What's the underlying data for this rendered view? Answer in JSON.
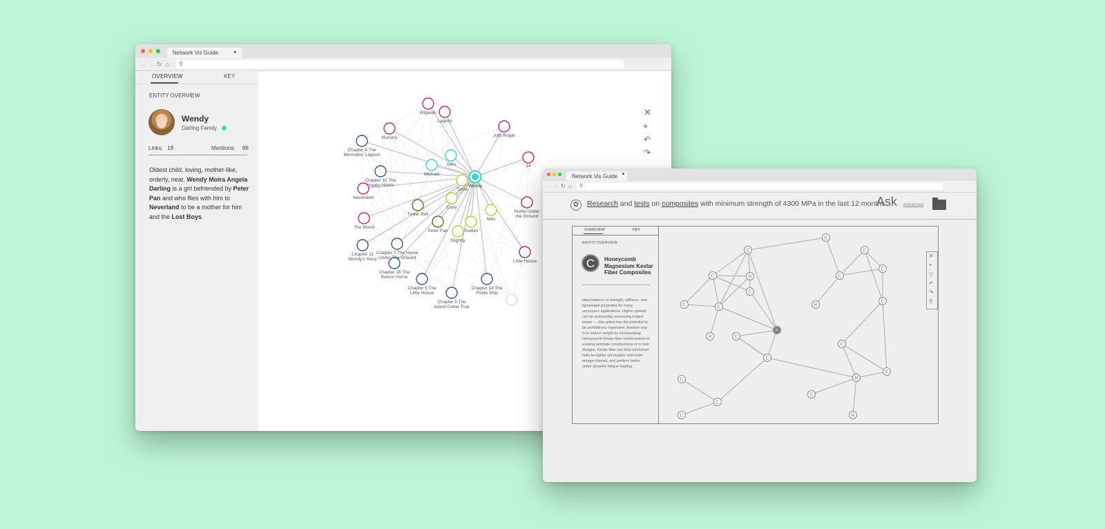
{
  "window1": {
    "tab_title": "Network Vis Guide",
    "tabs": [
      "OVERVIEW",
      "KEY"
    ],
    "section_label": "ENTITY OVERVIEW",
    "entity": {
      "name": "Wendy",
      "group": "Darling Family",
      "group_color": "#3fd2c7",
      "links_label": "Links:",
      "links_value": "18",
      "mentions_label": "Mentions:",
      "mentions_value": "86"
    },
    "description": [
      {
        "t": "Oldest child, loving, mother-like, orderly, neat. ",
        "b": false
      },
      {
        "t": "Wendy Moira Angela Darling",
        "b": true
      },
      {
        "t": " is a girl befriended by ",
        "b": false
      },
      {
        "t": "Peter Pan",
        "b": true
      },
      {
        "t": " and who flies with him to ",
        "b": false
      },
      {
        "t": "Neverland",
        "b": true
      },
      {
        "t": " to be a mother for him and the ",
        "b": false
      },
      {
        "t": "Lost Boys",
        "b": true
      },
      {
        "t": ".",
        "b": false
      }
    ],
    "graph": {
      "center": {
        "label": "Wendy",
        "color": "#3fd2c7"
      },
      "nodes": [
        {
          "label": "Wigwam",
          "color": "#c0257a"
        },
        {
          "label": "Lagoon",
          "color": "#c0257a"
        },
        {
          "label": "Nursery",
          "color": "#c0257a"
        },
        {
          "label": "Jolly Roger",
          "color": "#c0257a"
        },
        {
          "label": "14",
          "color": "#c0257a"
        },
        {
          "label": "Chapter 8 The Mermaids' Lagoon",
          "color": "#2a5a8c"
        },
        {
          "label": "John",
          "color": "#3fd2c7"
        },
        {
          "label": "Michael",
          "color": "#3fd2c7"
        },
        {
          "label": "Chapter 10 The Happy Home",
          "color": "#2a5a8c"
        },
        {
          "label": "Twins",
          "color": "#b5cc3a"
        },
        {
          "label": "Neverland",
          "color": "#c0257a"
        },
        {
          "label": "Curly",
          "color": "#b5cc3a"
        },
        {
          "label": "Tinker Bell",
          "color": "#4a7a1a"
        },
        {
          "label": "Nibs",
          "color": "#b5cc3a"
        },
        {
          "label": "Home Under the Ground",
          "color": "#c0257a"
        },
        {
          "label": "The Wood",
          "color": "#c0257a"
        },
        {
          "label": "Peter Pan",
          "color": "#4a7a1a"
        },
        {
          "label": "Tootles",
          "color": "#b5cc3a"
        },
        {
          "label": "Slightly",
          "color": "#b5cc3a"
        },
        {
          "label": "Chapter 11 Wendy's Story",
          "color": "#2a5a8c"
        },
        {
          "label": "Chapter 7 The Home Under The Ground",
          "color": "#2a5a8c"
        },
        {
          "label": "Little House",
          "color": "#c0257a"
        },
        {
          "label": "Chapter 16 The Return Home",
          "color": "#2a5a8c"
        },
        {
          "label": "Chapter 6 The Little House",
          "color": "#2a5a8c"
        },
        {
          "label": "Chapter 14 The Pirate Ship",
          "color": "#2a5a8c"
        },
        {
          "label": "Chapter 5 The Island Come True",
          "color": "#2a5a8c"
        },
        {
          "label": "",
          "color": "#dddddd"
        }
      ]
    }
  },
  "window2": {
    "tab_title": "Network Vis Guide",
    "query": [
      {
        "t": "Research",
        "u": true
      },
      {
        "t": " and ",
        "u": false
      },
      {
        "t": "tests",
        "u": true
      },
      {
        "t": " on ",
        "u": false
      },
      {
        "t": "composites",
        "u": true
      },
      {
        "t": " with minimum strength of 4300 MPa in the last 12 months",
        "u": false
      }
    ],
    "ask_label": "Ask",
    "advanced_label": "Advanced",
    "tabs": [
      "OVERVIEW",
      "KEY"
    ],
    "section_label": "ENTITY OVERVIEW",
    "entity_letter": "C",
    "entity_name": "Honeycomb Magnesium Kevlar Fiber Composites",
    "description": "Ideal balance of strength, stiffness, and lightweight properties for many aerospace applications. Higher speeds can be achievedby increasing engine power — this option has the potential to be prohibitively expensive. Another way is to reduce weight by incorporating Honeycomb Kevlar fiber reinforcement in existing laminate constructions or in new designs. Kevlar fiber can help reinforced hulls be lighter yet tougher and more amage-tolerant, and perform better under dynamic fatigue loading.",
    "graph_nodes": [
      "C",
      "C",
      "C",
      "C",
      "R",
      "C",
      "C",
      "C",
      "C",
      "R",
      "C",
      "C",
      "R",
      "R",
      "C",
      "C",
      "C",
      "R",
      "C",
      "C",
      "C",
      "C",
      "R",
      "C",
      "C",
      "C"
    ]
  }
}
